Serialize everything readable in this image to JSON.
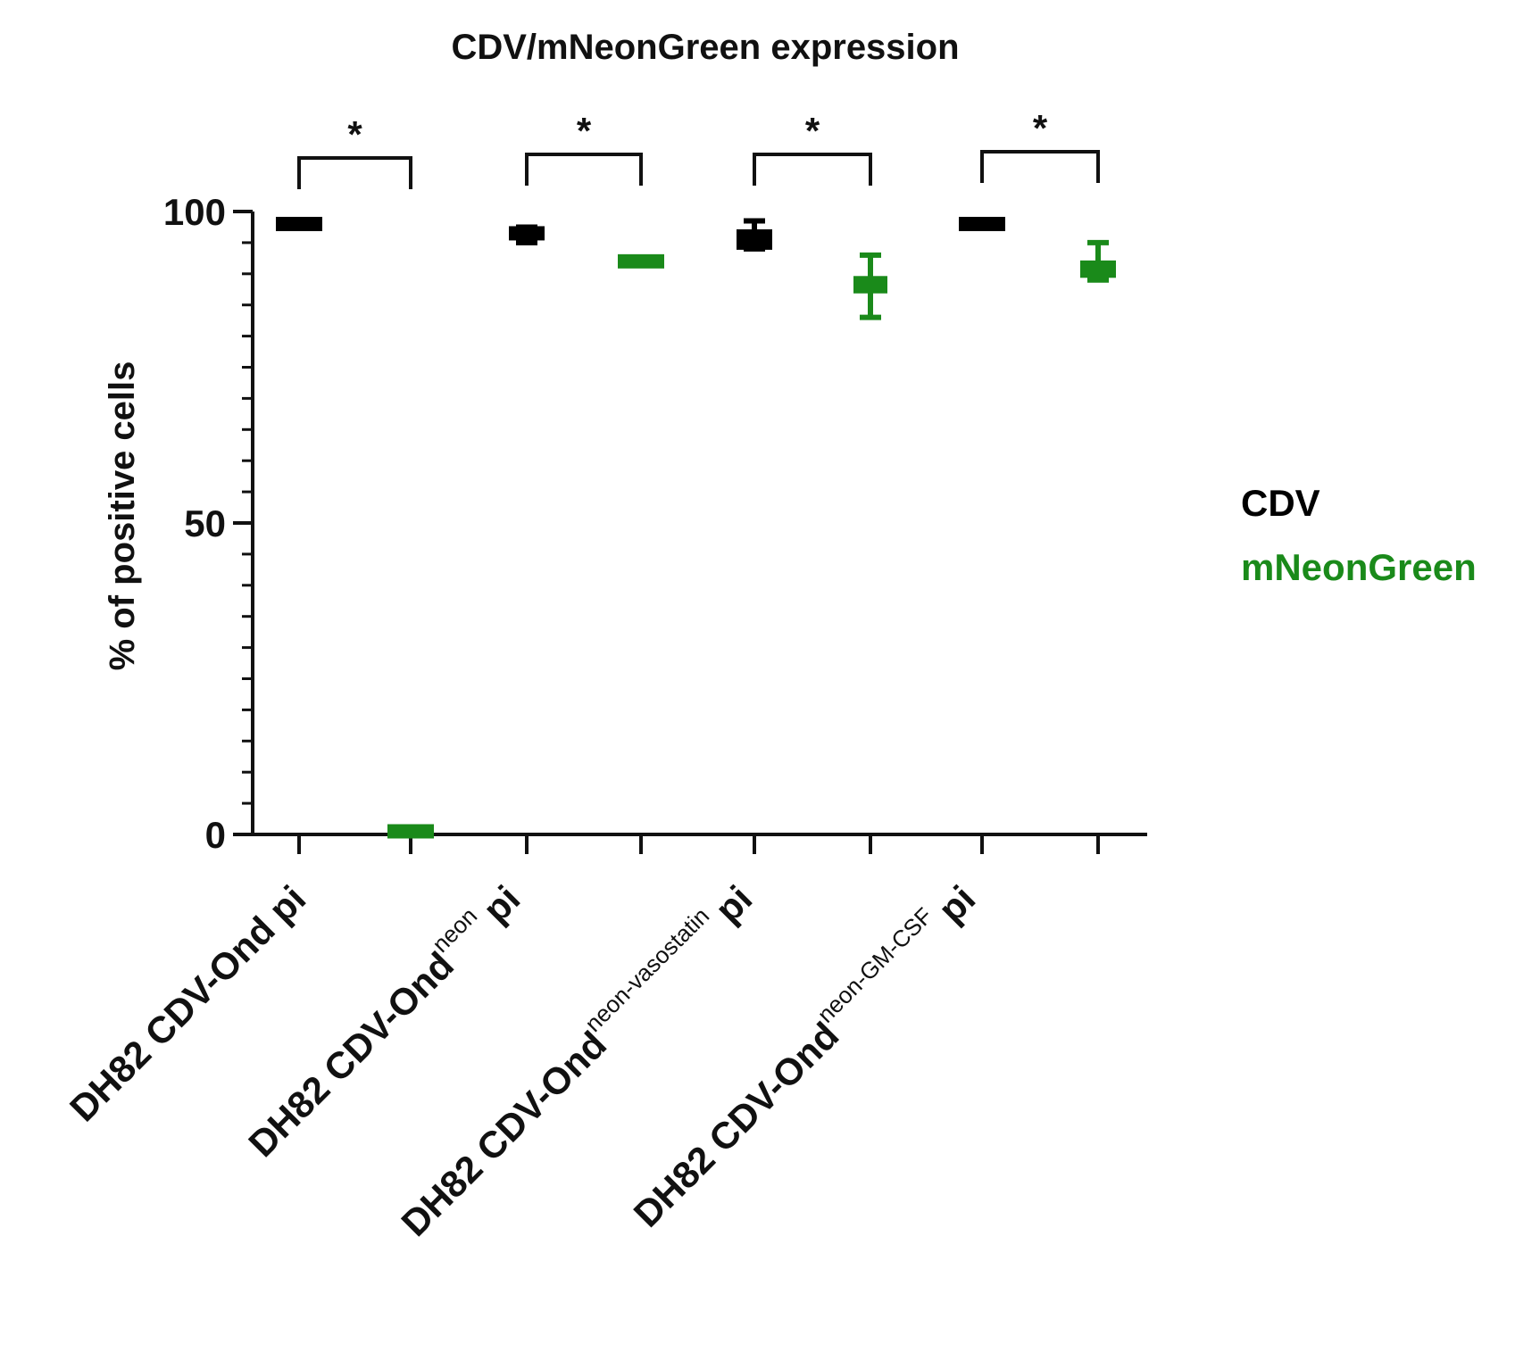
{
  "chart_data": {
    "type": "box",
    "title": "CDV/mNeonGreen expression",
    "ylabel": "% of positive cells",
    "xlabel": "",
    "ylim": [
      0,
      100
    ],
    "yticks": [
      0,
      50,
      100
    ],
    "y_minor_step": 5,
    "legend": {
      "placement": "right",
      "entries": [
        {
          "label": "CDV",
          "color": "#000000"
        },
        {
          "label": "mNeonGreen",
          "color": "#1a8a1a"
        }
      ]
    },
    "groups": [
      {
        "label_main": "DH82 CDV-Ond",
        "label_sup": "",
        "label_tail": "pi"
      },
      {
        "label_main": "DH82 CDV-Ond",
        "label_sup": "neon",
        "label_tail": "pi"
      },
      {
        "label_main": "DH82 CDV-Ond",
        "label_sup": "neon-vasostatin",
        "label_tail": "pi"
      },
      {
        "label_main": "DH82 CDV-Ond",
        "label_sup": "neon-GM-CSF",
        "label_tail": "pi"
      }
    ],
    "series": [
      {
        "name": "CDV",
        "color": "#000000",
        "boxes": [
          {
            "min": 97,
            "q1": 97,
            "median": 98,
            "q3": 99,
            "max": 99
          },
          {
            "min": 95,
            "q1": 95.5,
            "median": 96.5,
            "q3": 97.5,
            "max": 97.5
          },
          {
            "min": 94,
            "q1": 94,
            "median": 95.5,
            "q3": 97,
            "max": 98.5
          },
          {
            "min": 97,
            "q1": 97,
            "median": 98,
            "q3": 99,
            "max": 99
          }
        ]
      },
      {
        "name": "mNeonGreen",
        "color": "#1a8a1a",
        "boxes": [
          {
            "min": 0,
            "q1": 0,
            "median": 0.5,
            "q3": 1,
            "max": 1
          },
          {
            "min": 91,
            "q1": 91,
            "median": 92,
            "q3": 93,
            "max": 93
          },
          {
            "min": 83,
            "q1": 87,
            "median": 88.5,
            "q3": 89.5,
            "max": 93
          },
          {
            "min": 89,
            "q1": 89.5,
            "median": 90.5,
            "q3": 92,
            "max": 95
          }
        ]
      }
    ],
    "significance": [
      {
        "group": 0,
        "label": "*"
      },
      {
        "group": 1,
        "label": "*"
      },
      {
        "group": 2,
        "label": "*"
      },
      {
        "group": 3,
        "label": "*"
      }
    ]
  }
}
